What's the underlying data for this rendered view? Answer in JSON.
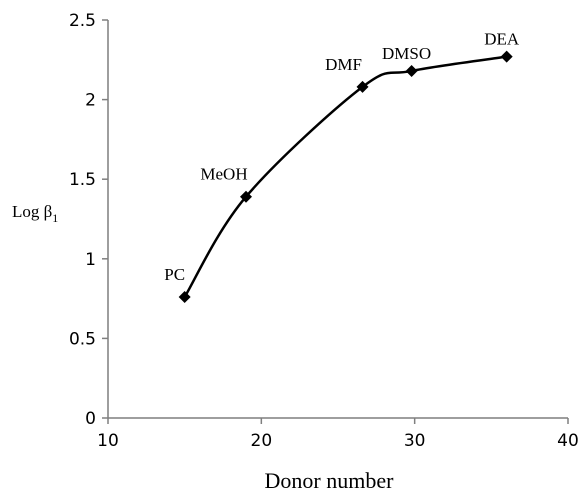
{
  "chart_data": {
    "type": "line",
    "title": "",
    "xlabel": "Donor number",
    "ylabel": "Log β",
    "ylabel_subscript": "1",
    "xlim": [
      10,
      40
    ],
    "ylim": [
      0,
      2.5
    ],
    "xticks": [
      "10",
      "20",
      "30",
      "40"
    ],
    "yticks": [
      "0",
      "0.5",
      "1",
      "1.5",
      "2",
      "2.5"
    ],
    "grid": false,
    "line_color": "#000000",
    "marker": "diamond",
    "points": [
      {
        "label": "PC",
        "x": 15,
        "y": 0.76
      },
      {
        "label": "MeOH",
        "x": 19,
        "y": 1.39
      },
      {
        "label": "DMF",
        "x": 26.6,
        "y": 2.08
      },
      {
        "label": "DMSO",
        "x": 29.8,
        "y": 2.18
      },
      {
        "label": "DEA",
        "x": 36,
        "y": 2.27
      }
    ]
  }
}
